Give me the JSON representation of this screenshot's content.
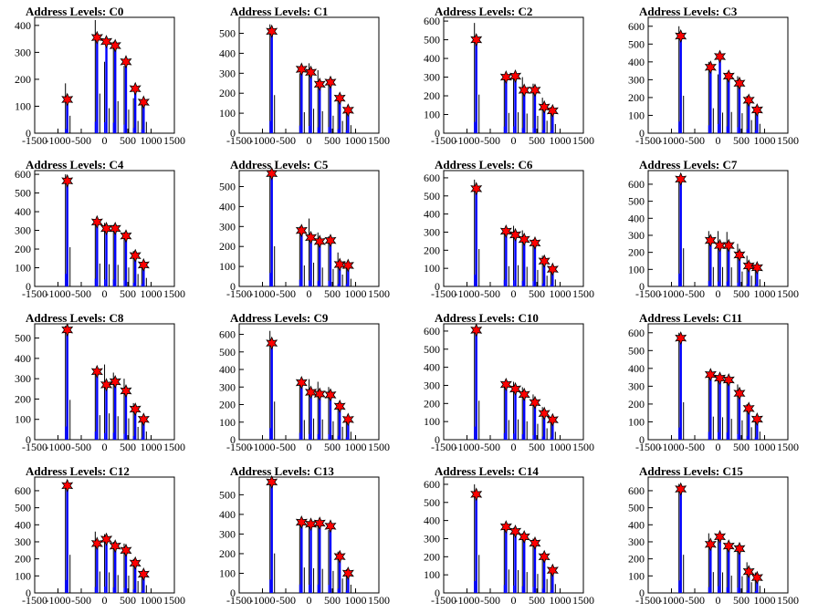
{
  "chart_data": [
    {
      "type": "bar",
      "title": "Address Levels: C0",
      "xlim": [
        -1500,
        1500
      ],
      "ylim": [
        0,
        430
      ],
      "yticks": [
        0,
        100,
        200,
        300,
        400
      ],
      "peaks": [
        [
          -800,
          125
        ],
        [
          -160,
          355
        ],
        [
          40,
          340
        ],
        [
          230,
          325
        ],
        [
          460,
          265
        ],
        [
          660,
          165
        ],
        [
          840,
          115
        ]
      ],
      "spikes": [
        [
          -800,
          185
        ],
        [
          -160,
          420
        ],
        [
          40,
          265
        ],
        [
          230,
          340
        ],
        [
          460,
          250
        ],
        [
          660,
          130
        ],
        [
          840,
          120
        ]
      ]
    },
    {
      "type": "bar",
      "title": "Address Levels: C1",
      "xlim": [
        -1500,
        1500
      ],
      "ylim": [
        0,
        580
      ],
      "yticks": [
        0,
        100,
        200,
        300,
        400,
        500
      ],
      "peaks": [
        [
          -800,
          510
        ],
        [
          -160,
          320
        ],
        [
          40,
          305
        ],
        [
          230,
          245
        ],
        [
          460,
          255
        ],
        [
          660,
          175
        ],
        [
          840,
          115
        ]
      ],
      "spikes": [
        [
          -800,
          545
        ],
        [
          -160,
          300
        ],
        [
          40,
          350
        ],
        [
          230,
          315
        ],
        [
          460,
          250
        ],
        [
          660,
          175
        ],
        [
          840,
          115
        ]
      ]
    },
    {
      "type": "bar",
      "title": "Address Levels: C2",
      "xlim": [
        -1500,
        1500
      ],
      "ylim": [
        0,
        620
      ],
      "yticks": [
        0,
        100,
        200,
        300,
        400,
        500,
        600
      ],
      "peaks": [
        [
          -800,
          500
        ],
        [
          -160,
          300
        ],
        [
          40,
          305
        ],
        [
          230,
          230
        ],
        [
          460,
          230
        ],
        [
          660,
          140
        ],
        [
          840,
          120
        ]
      ],
      "spikes": [
        [
          -800,
          590
        ],
        [
          -160,
          310
        ],
        [
          40,
          320
        ],
        [
          230,
          300
        ],
        [
          460,
          265
        ],
        [
          660,
          190
        ],
        [
          840,
          140
        ]
      ]
    },
    {
      "type": "bar",
      "title": "Address Levels: C3",
      "xlim": [
        -1500,
        1500
      ],
      "ylim": [
        0,
        650
      ],
      "yticks": [
        0,
        100,
        200,
        300,
        400,
        500,
        600
      ],
      "peaks": [
        [
          -800,
          545
        ],
        [
          -160,
          370
        ],
        [
          40,
          430
        ],
        [
          230,
          320
        ],
        [
          460,
          280
        ],
        [
          660,
          185
        ],
        [
          840,
          130
        ]
      ],
      "spikes": [
        [
          -800,
          600
        ],
        [
          -160,
          400
        ],
        [
          40,
          330
        ],
        [
          230,
          340
        ],
        [
          460,
          320
        ],
        [
          660,
          210
        ],
        [
          840,
          150
        ]
      ]
    },
    {
      "type": "bar",
      "title": "Address Levels: C4",
      "xlim": [
        -1500,
        1500
      ],
      "ylim": [
        0,
        620
      ],
      "yticks": [
        0,
        100,
        200,
        300,
        400,
        500,
        600
      ],
      "peaks": [
        [
          -800,
          565
        ],
        [
          -160,
          345
        ],
        [
          40,
          310
        ],
        [
          230,
          310
        ],
        [
          460,
          270
        ],
        [
          660,
          165
        ],
        [
          840,
          115
        ]
      ],
      "spikes": [
        [
          -800,
          600
        ],
        [
          -160,
          350
        ],
        [
          40,
          340
        ],
        [
          230,
          330
        ],
        [
          460,
          290
        ],
        [
          660,
          190
        ],
        [
          840,
          130
        ]
      ]
    },
    {
      "type": "bar",
      "title": "Address Levels: C5",
      "xlim": [
        -1500,
        1500
      ],
      "ylim": [
        0,
        580
      ],
      "yticks": [
        0,
        100,
        200,
        300,
        400,
        500
      ],
      "peaks": [
        [
          -800,
          565
        ],
        [
          -160,
          280
        ],
        [
          40,
          245
        ],
        [
          230,
          225
        ],
        [
          460,
          230
        ],
        [
          660,
          110
        ],
        [
          840,
          105
        ]
      ],
      "spikes": [
        [
          -800,
          575
        ],
        [
          -160,
          300
        ],
        [
          40,
          340
        ],
        [
          230,
          270
        ],
        [
          460,
          250
        ],
        [
          660,
          170
        ],
        [
          840,
          110
        ]
      ]
    },
    {
      "type": "bar",
      "title": "Address Levels: C6",
      "xlim": [
        -1500,
        1500
      ],
      "ylim": [
        0,
        640
      ],
      "yticks": [
        0,
        100,
        200,
        300,
        400,
        500,
        600
      ],
      "peaks": [
        [
          -800,
          540
        ],
        [
          -160,
          305
        ],
        [
          40,
          285
        ],
        [
          230,
          260
        ],
        [
          460,
          240
        ],
        [
          660,
          140
        ],
        [
          840,
          95
        ]
      ],
      "spikes": [
        [
          -800,
          590
        ],
        [
          -160,
          320
        ],
        [
          40,
          335
        ],
        [
          230,
          310
        ],
        [
          460,
          260
        ],
        [
          660,
          170
        ],
        [
          840,
          110
        ]
      ]
    },
    {
      "type": "bar",
      "title": "Address Levels: C7",
      "xlim": [
        -1500,
        1500
      ],
      "ylim": [
        0,
        680
      ],
      "yticks": [
        0,
        100,
        200,
        300,
        400,
        500,
        600
      ],
      "peaks": [
        [
          -800,
          630
        ],
        [
          -160,
          270
        ],
        [
          40,
          240
        ],
        [
          230,
          240
        ],
        [
          460,
          185
        ],
        [
          660,
          120
        ],
        [
          840,
          110
        ]
      ],
      "spikes": [
        [
          -800,
          640
        ],
        [
          -160,
          325
        ],
        [
          40,
          325
        ],
        [
          230,
          320
        ],
        [
          460,
          250
        ],
        [
          660,
          180
        ],
        [
          840,
          120
        ]
      ]
    },
    {
      "type": "bar",
      "title": "Address Levels: C8",
      "xlim": [
        -1500,
        1500
      ],
      "ylim": [
        0,
        570
      ],
      "yticks": [
        0,
        100,
        200,
        300,
        400,
        500
      ],
      "peaks": [
        [
          -800,
          540
        ],
        [
          -160,
          335
        ],
        [
          40,
          270
        ],
        [
          230,
          285
        ],
        [
          460,
          240
        ],
        [
          660,
          150
        ],
        [
          840,
          100
        ]
      ],
      "spikes": [
        [
          -800,
          560
        ],
        [
          -160,
          345
        ],
        [
          40,
          370
        ],
        [
          230,
          330
        ],
        [
          460,
          300
        ],
        [
          660,
          180
        ],
        [
          840,
          115
        ]
      ]
    },
    {
      "type": "bar",
      "title": "Address Levels: C9",
      "xlim": [
        -1500,
        1500
      ],
      "ylim": [
        0,
        660
      ],
      "yticks": [
        0,
        100,
        200,
        300,
        400,
        500,
        600
      ],
      "peaks": [
        [
          -800,
          550
        ],
        [
          -160,
          325
        ],
        [
          40,
          270
        ],
        [
          230,
          260
        ],
        [
          460,
          255
        ],
        [
          660,
          190
        ],
        [
          840,
          115
        ]
      ],
      "spikes": [
        [
          -800,
          620
        ],
        [
          -160,
          320
        ],
        [
          40,
          345
        ],
        [
          230,
          330
        ],
        [
          460,
          300
        ],
        [
          660,
          210
        ],
        [
          840,
          130
        ]
      ]
    },
    {
      "type": "bar",
      "title": "Address Levels: C10",
      "xlim": [
        -1500,
        1500
      ],
      "ylim": [
        0,
        640
      ],
      "yticks": [
        0,
        100,
        200,
        300,
        400,
        500,
        600
      ],
      "peaks": [
        [
          -800,
          605
        ],
        [
          -160,
          305
        ],
        [
          40,
          280
        ],
        [
          230,
          250
        ],
        [
          460,
          205
        ],
        [
          660,
          145
        ],
        [
          840,
          110
        ]
      ],
      "spikes": [
        [
          -800,
          615
        ],
        [
          -160,
          310
        ],
        [
          40,
          320
        ],
        [
          230,
          290
        ],
        [
          460,
          250
        ],
        [
          660,
          180
        ],
        [
          840,
          125
        ]
      ]
    },
    {
      "type": "bar",
      "title": "Address Levels: C11",
      "xlim": [
        -1500,
        1500
      ],
      "ylim": [
        0,
        650
      ],
      "yticks": [
        0,
        100,
        200,
        300,
        400,
        500,
        600
      ],
      "peaks": [
        [
          -800,
          570
        ],
        [
          -160,
          365
        ],
        [
          40,
          345
        ],
        [
          230,
          335
        ],
        [
          460,
          260
        ],
        [
          660,
          175
        ],
        [
          840,
          115
        ]
      ],
      "spikes": [
        [
          -800,
          600
        ],
        [
          -160,
          370
        ],
        [
          40,
          360
        ],
        [
          230,
          335
        ],
        [
          460,
          310
        ],
        [
          660,
          200
        ],
        [
          840,
          130
        ]
      ]
    },
    {
      "type": "bar",
      "title": "Address Levels: C12",
      "xlim": [
        -1500,
        1500
      ],
      "ylim": [
        0,
        680
      ],
      "yticks": [
        0,
        100,
        200,
        300,
        400,
        500,
        600
      ],
      "peaks": [
        [
          -800,
          630
        ],
        [
          -160,
          290
        ],
        [
          40,
          315
        ],
        [
          230,
          275
        ],
        [
          460,
          250
        ],
        [
          660,
          175
        ],
        [
          840,
          110
        ]
      ],
      "spikes": [
        [
          -800,
          640
        ],
        [
          -160,
          360
        ],
        [
          40,
          345
        ],
        [
          230,
          300
        ],
        [
          460,
          290
        ],
        [
          660,
          200
        ],
        [
          840,
          130
        ]
      ]
    },
    {
      "type": "bar",
      "title": "Address Levels: C13",
      "xlim": [
        -1500,
        1500
      ],
      "ylim": [
        0,
        590
      ],
      "yticks": [
        0,
        100,
        200,
        300,
        400,
        500
      ],
      "peaks": [
        [
          -800,
          565
        ],
        [
          -160,
          360
        ],
        [
          40,
          350
        ],
        [
          230,
          355
        ],
        [
          460,
          340
        ],
        [
          660,
          185
        ],
        [
          840,
          100
        ]
      ],
      "spikes": [
        [
          -800,
          575
        ],
        [
          -160,
          370
        ],
        [
          40,
          360
        ],
        [
          230,
          350
        ],
        [
          460,
          320
        ],
        [
          660,
          210
        ],
        [
          840,
          120
        ]
      ]
    },
    {
      "type": "bar",
      "title": "Address Levels: C14",
      "xlim": [
        -1500,
        1500
      ],
      "ylim": [
        0,
        640
      ],
      "yticks": [
        0,
        100,
        200,
        300,
        400,
        500,
        600
      ],
      "peaks": [
        [
          -800,
          545
        ],
        [
          -160,
          365
        ],
        [
          40,
          340
        ],
        [
          230,
          310
        ],
        [
          460,
          275
        ],
        [
          660,
          200
        ],
        [
          840,
          125
        ]
      ],
      "spikes": [
        [
          -800,
          600
        ],
        [
          -160,
          370
        ],
        [
          40,
          360
        ],
        [
          230,
          330
        ],
        [
          460,
          300
        ],
        [
          660,
          220
        ],
        [
          840,
          140
        ]
      ]
    },
    {
      "type": "bar",
      "title": "Address Levels: C15",
      "xlim": [
        -1500,
        1500
      ],
      "ylim": [
        0,
        680
      ],
      "yticks": [
        0,
        100,
        200,
        300,
        400,
        500,
        600
      ],
      "peaks": [
        [
          -800,
          610
        ],
        [
          -160,
          285
        ],
        [
          40,
          330
        ],
        [
          230,
          275
        ],
        [
          460,
          260
        ],
        [
          660,
          125
        ],
        [
          840,
          90
        ]
      ],
      "spikes": [
        [
          -800,
          640
        ],
        [
          -160,
          350
        ],
        [
          40,
          345
        ],
        [
          230,
          290
        ],
        [
          460,
          280
        ],
        [
          660,
          180
        ],
        [
          840,
          120
        ]
      ]
    }
  ],
  "x_ticks": [
    -1500,
    -1000,
    -500,
    0,
    500,
    1000,
    1500
  ],
  "colors": {
    "bars": "#0000ff",
    "marker_fill": "#ff0000",
    "marker_stroke": "#000000",
    "axis": "#000000"
  }
}
